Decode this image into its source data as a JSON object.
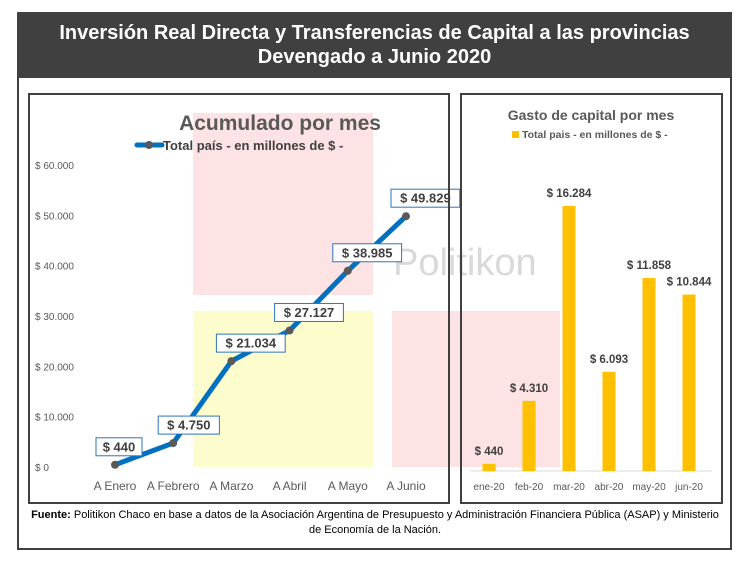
{
  "header": {
    "title_line1": "Inversión Real Directa y Transferencias de Capital a las provincias",
    "title_line2": "Devengado a Junio 2020"
  },
  "watermark": "Politikon",
  "chart_data": [
    {
      "type": "line",
      "title": "Acumulado por mes",
      "series": [
        {
          "name": "Total país - en millones de $ -",
          "values": [
            440,
            4750,
            21034,
            27127,
            38985,
            49829
          ],
          "labels": [
            "$ 440",
            "$ 4.750",
            "$ 21.034",
            "$ 27.127",
            "$ 38.985",
            "$ 49.829"
          ]
        }
      ],
      "categories": [
        "A Enero",
        "A Febrero",
        "A Marzo",
        "A Abril",
        "A Mayo",
        "A Junio"
      ],
      "ylim": [
        0,
        60000
      ],
      "yticks": [
        0,
        10000,
        20000,
        30000,
        40000,
        50000,
        60000
      ],
      "ytick_labels": [
        "$ 0",
        "$ 10.000",
        "$ 20.000",
        "$ 30.000",
        "$ 40.000",
        "$ 50.000",
        "$ 60.000"
      ],
      "color": "#0070C0",
      "marker_color": "#595959",
      "legend": "top",
      "grid": false
    },
    {
      "type": "bar",
      "title": "Gasto de capital por mes",
      "series": [
        {
          "name": "Total pais - en millones de $ -",
          "values": [
            440,
            4310,
            16284,
            6093,
            11858,
            10844
          ],
          "labels": [
            "$ 440",
            "$ 4.310",
            "$ 16.284",
            "$ 6.093",
            "$ 11.858",
            "$ 10.844"
          ]
        }
      ],
      "categories": [
        "ene-20",
        "feb-20",
        "mar-20",
        "abr-20",
        "may-20",
        "jun-20"
      ],
      "color": "#FFC000",
      "legend": "top",
      "grid": false
    }
  ],
  "source": {
    "label": "Fuente:",
    "text": " Politikon Chaco en base a datos de la Asociación Argentina de Presupuesto y Administración Financiera Pública (ASAP) y Ministerio de Economía de la Nación."
  }
}
